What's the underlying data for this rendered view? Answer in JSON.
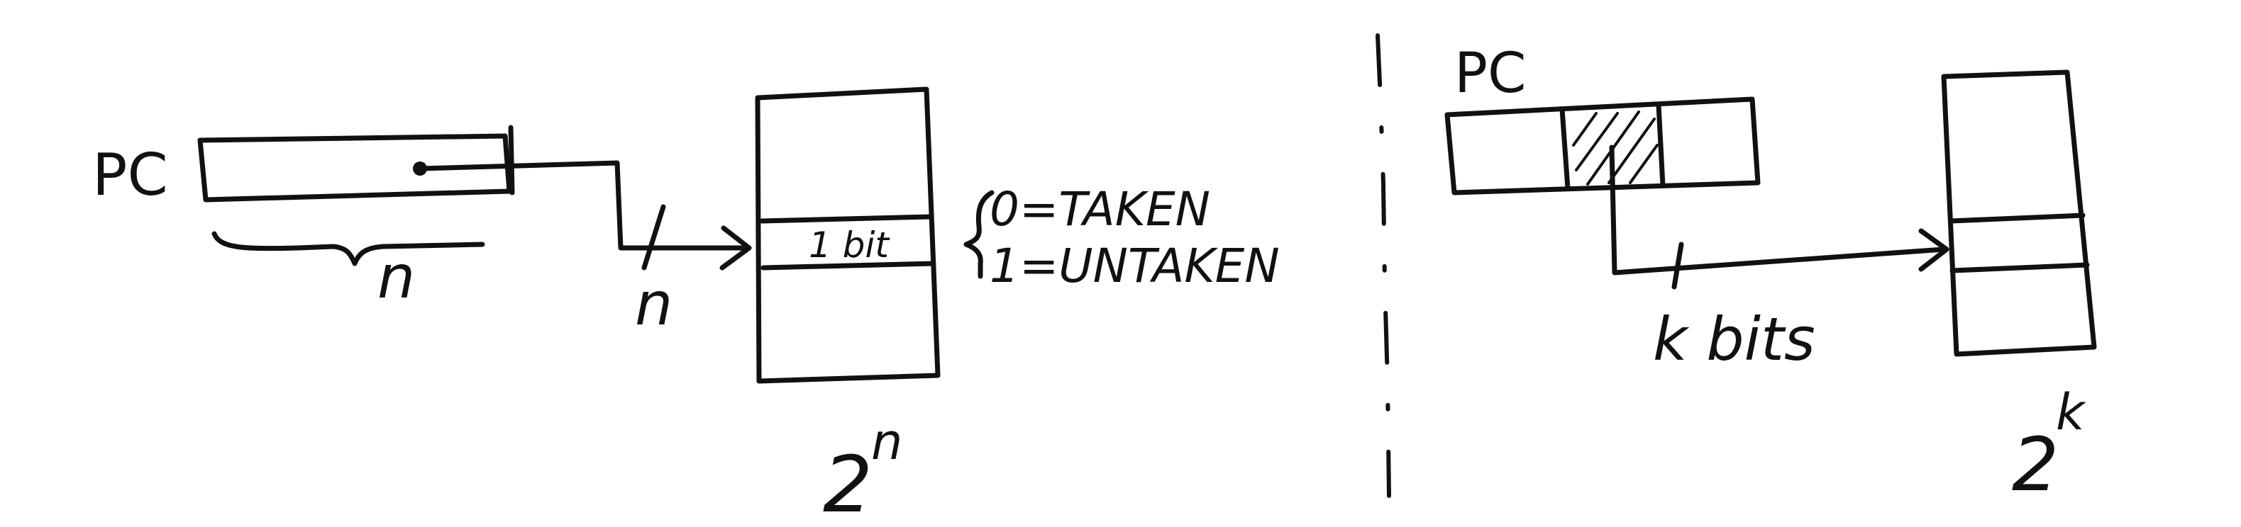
{
  "left": {
    "pc_label": "PC",
    "n_under_pc": "n",
    "n_on_wire": "n",
    "table_entry_label": "1 bit",
    "table_size_base": "2",
    "table_size_exp": "n",
    "legend_taken": "0=TAKEN",
    "legend_untaken": "1=UNTAKEN"
  },
  "right": {
    "pc_label": "PC",
    "k_bits_label": "k bits",
    "table_size_base": "2",
    "table_size_exp": "k"
  },
  "colors": {
    "ink": "#111111",
    "paper": "#ffffff"
  }
}
